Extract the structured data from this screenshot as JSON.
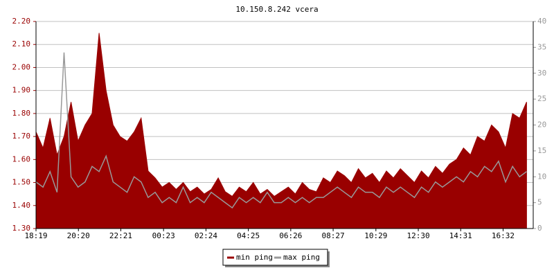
{
  "chart_data": {
    "type": "line",
    "title": "10.150.8.242 vcera",
    "x": [
      0,
      20,
      40,
      60,
      80,
      100,
      120,
      140,
      160,
      180,
      200,
      220,
      240,
      260,
      280,
      300,
      320,
      340,
      360,
      380,
      400,
      420,
      440,
      460,
      480,
      500,
      520,
      540,
      560,
      580,
      600,
      620,
      640,
      660,
      680,
      700,
      720,
      740,
      760,
      780,
      800,
      820,
      840,
      860,
      880,
      900,
      920,
      940,
      960,
      980,
      1000,
      1020,
      1040,
      1060,
      1080,
      1100,
      1120,
      1140,
      1160,
      1180,
      1200,
      1220,
      1240,
      1260,
      1280,
      1300,
      1320,
      1340,
      1360,
      1380,
      1400
    ],
    "xlim": [
      0,
      1419
    ],
    "xticks": [
      {
        "value": 0,
        "label": "18:19"
      },
      {
        "value": 121,
        "label": "20:20"
      },
      {
        "value": 242,
        "label": "22:21"
      },
      {
        "value": 364,
        "label": "00:23"
      },
      {
        "value": 485,
        "label": "02:24"
      },
      {
        "value": 606,
        "label": "04:25"
      },
      {
        "value": 727,
        "label": "06:26"
      },
      {
        "value": 848,
        "label": "08:27"
      },
      {
        "value": 970,
        "label": "10:29"
      },
      {
        "value": 1091,
        "label": "12:30"
      },
      {
        "value": 1212,
        "label": "14:31"
      },
      {
        "value": 1333,
        "label": "16:32"
      }
    ],
    "ylim": [
      1.3,
      2.2
    ],
    "yticks": [
      {
        "value": 1.3,
        "label": "1.30"
      },
      {
        "value": 1.4,
        "label": "1.40"
      },
      {
        "value": 1.5,
        "label": "1.50"
      },
      {
        "value": 1.6,
        "label": "1.60"
      },
      {
        "value": 1.7,
        "label": "1.70"
      },
      {
        "value": 1.8,
        "label": "1.80"
      },
      {
        "value": 1.9,
        "label": "1.90"
      },
      {
        "value": 2.0,
        "label": "2.00"
      },
      {
        "value": 2.1,
        "label": "2.10"
      },
      {
        "value": 2.2,
        "label": "2.20"
      }
    ],
    "y2lim": [
      0,
      40
    ],
    "y2ticks": [
      0,
      5,
      10,
      15,
      20,
      25,
      30,
      35,
      40
    ],
    "grid": true,
    "legend": "bottom",
    "series": [
      {
        "name": "min ping",
        "color": "#990000",
        "values": [
          1.72,
          1.65,
          1.78,
          1.62,
          1.7,
          1.85,
          1.68,
          1.75,
          1.8,
          2.15,
          1.9,
          1.75,
          1.7,
          1.68,
          1.72,
          1.78,
          1.55,
          1.52,
          1.48,
          1.5,
          1.47,
          1.5,
          1.46,
          1.48,
          1.45,
          1.47,
          1.52,
          1.46,
          1.44,
          1.48,
          1.46,
          1.5,
          1.45,
          1.47,
          1.44,
          1.46,
          1.48,
          1.45,
          1.5,
          1.47,
          1.46,
          1.52,
          1.5,
          1.55,
          1.53,
          1.5,
          1.56,
          1.52,
          1.54,
          1.5,
          1.55,
          1.52,
          1.56,
          1.53,
          1.5,
          1.55,
          1.52,
          1.57,
          1.54,
          1.58,
          1.6,
          1.65,
          1.62,
          1.7,
          1.68,
          1.75,
          1.72,
          1.65,
          1.8,
          1.78,
          1.85
        ]
      },
      {
        "name": "max ping",
        "color": "#999999",
        "axis": "y2",
        "values": [
          9,
          8,
          11,
          7,
          34,
          10,
          8,
          9,
          12,
          11,
          14,
          9,
          8,
          7,
          10,
          9,
          6,
          7,
          5,
          6,
          5,
          8,
          5,
          6,
          5,
          7,
          6,
          5,
          4,
          6,
          5,
          6,
          5,
          7,
          5,
          5,
          6,
          5,
          6,
          5,
          6,
          6,
          7,
          8,
          7,
          6,
          8,
          7,
          7,
          6,
          8,
          7,
          8,
          7,
          6,
          8,
          7,
          9,
          8,
          9,
          10,
          9,
          11,
          10,
          12,
          11,
          13,
          9,
          12,
          10,
          11
        ]
      }
    ]
  }
}
